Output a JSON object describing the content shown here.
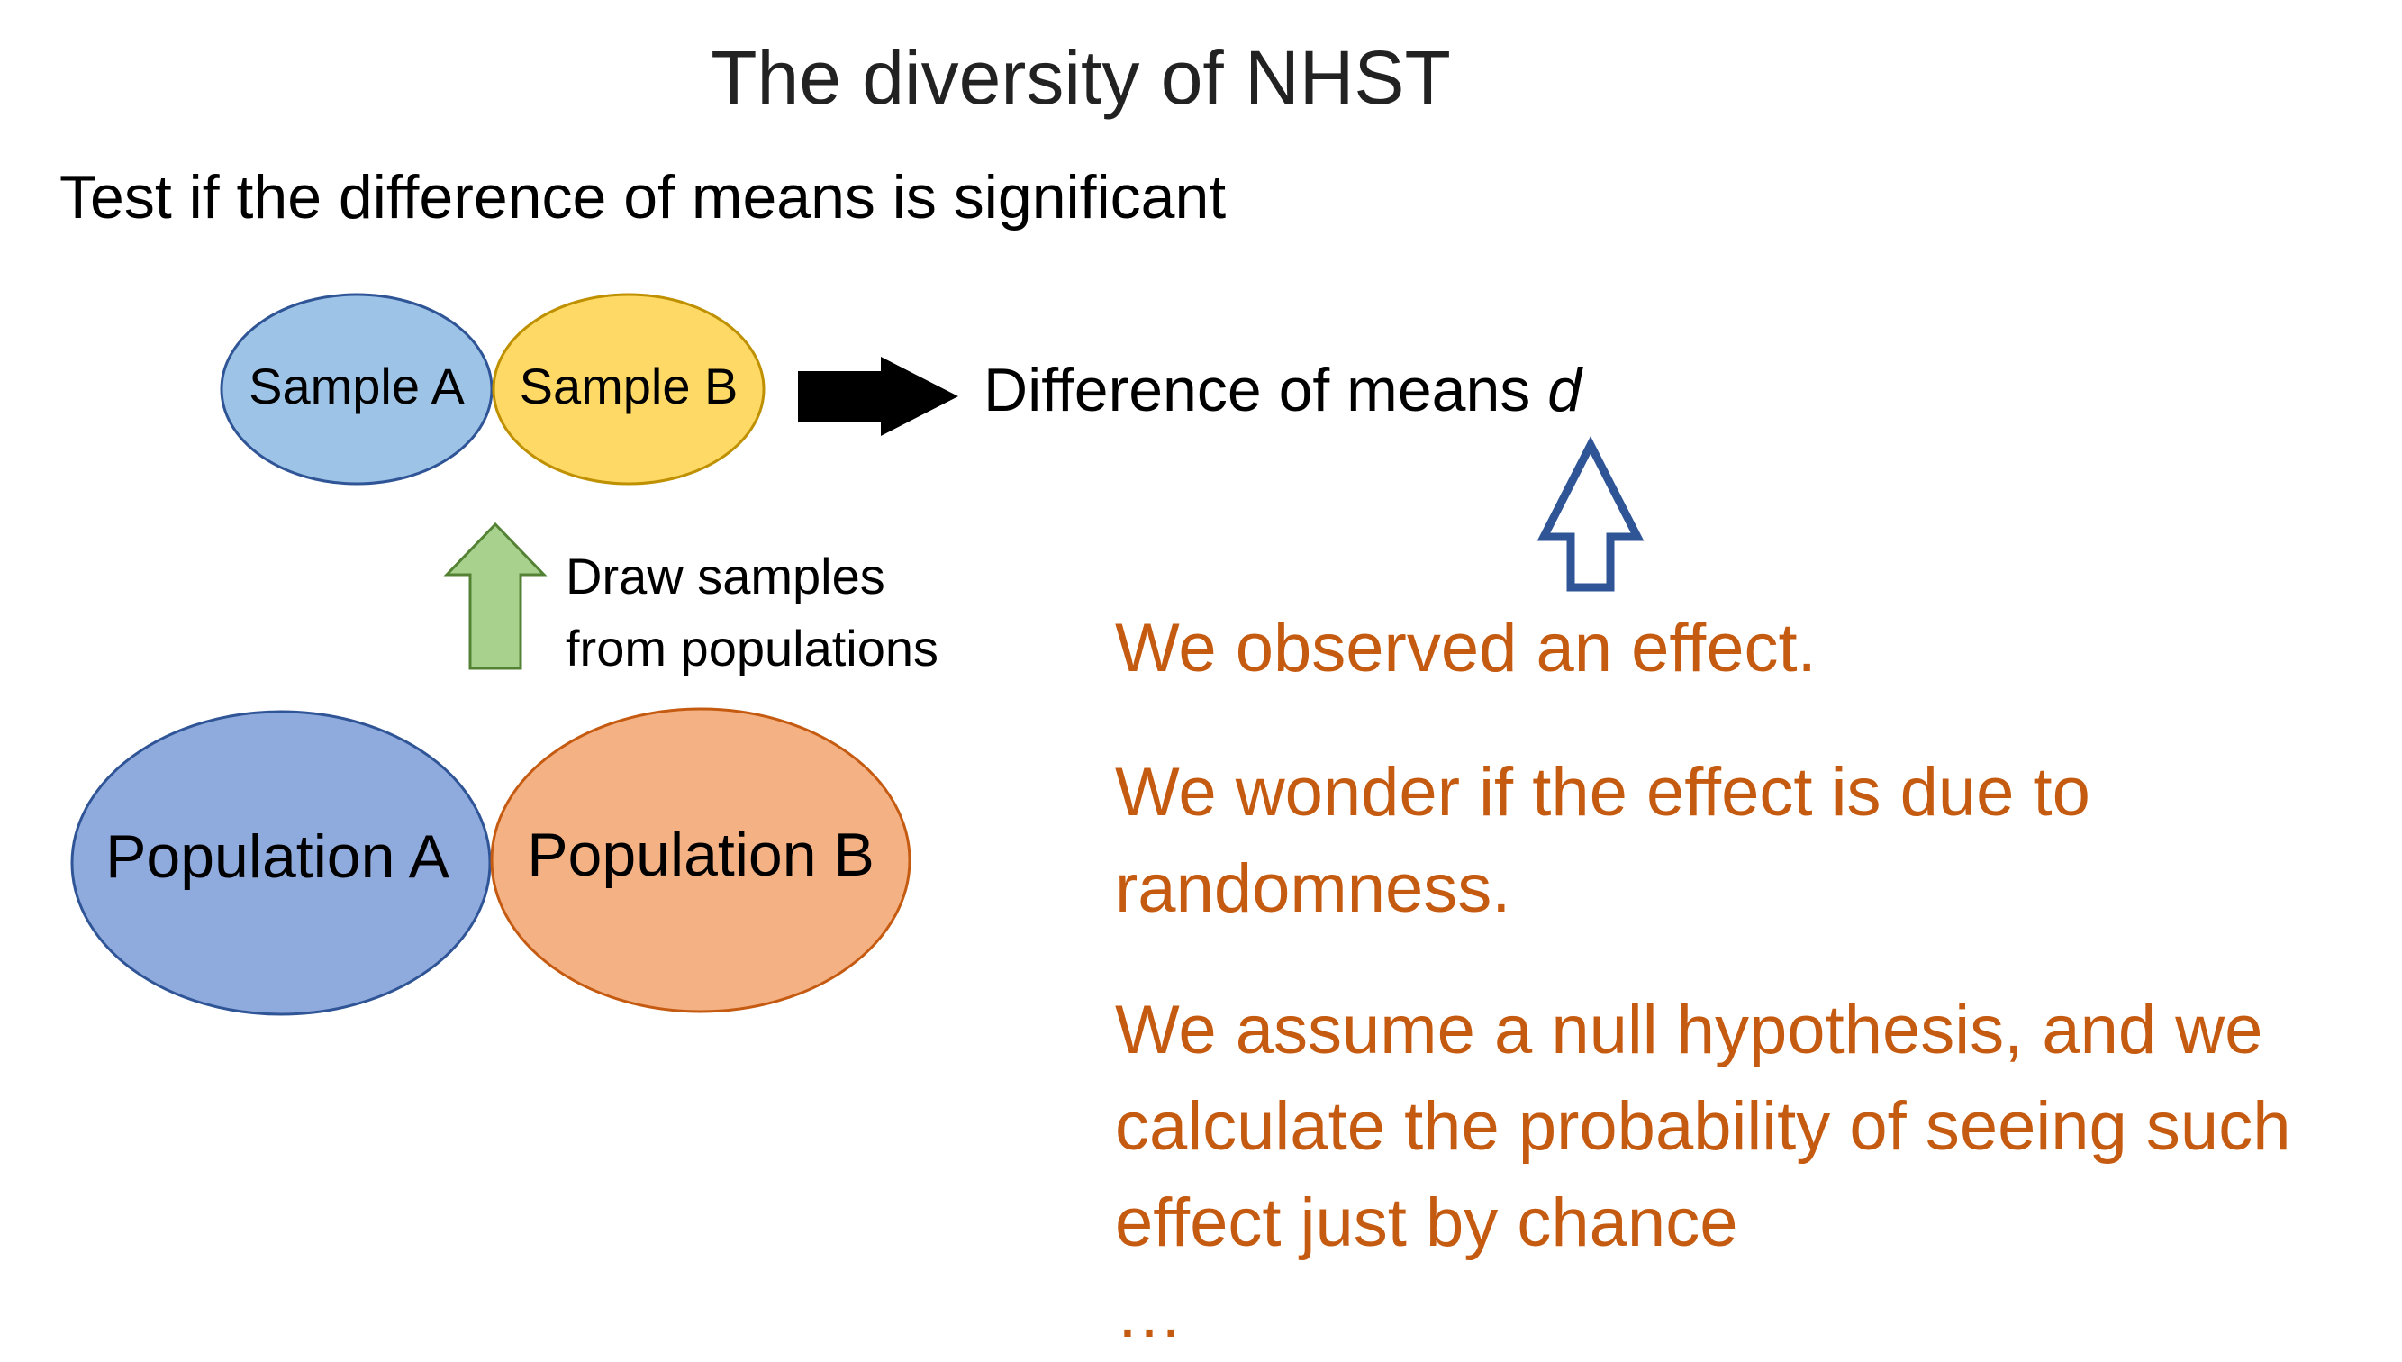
{
  "title": "The diversity of NHST",
  "subtitle": "Test if the difference of means is significant",
  "diagram": {
    "sample_a": {
      "label": "Sample A",
      "color": "#9DC3E6",
      "stroke": "#2F5597"
    },
    "sample_b": {
      "label": "Sample B",
      "color": "#FFD966",
      "stroke": "#BF9000"
    },
    "population_a": {
      "label": "Population A",
      "color": "#8FAADC",
      "stroke": "#2F5597"
    },
    "population_b": {
      "label": "Population B",
      "color": "#F4B183",
      "stroke": "#C55A11"
    },
    "draw_label": [
      "Draw samples",
      "from populations"
    ],
    "difference_label": "Difference of means ",
    "difference_var": "d",
    "up_arrow_color": "#A9D18E",
    "outline_arrow_color": "#2F5597",
    "black_arrow_color": "#000000"
  },
  "notes": {
    "color": "#C55A11",
    "observed": "We observed an effect.",
    "wonder": "We wonder if the effect is due to randomness.",
    "assume": "We assume a null hypothesis, and we calculate the probability of seeing such effect just by chance",
    "ellipsis": "…"
  }
}
